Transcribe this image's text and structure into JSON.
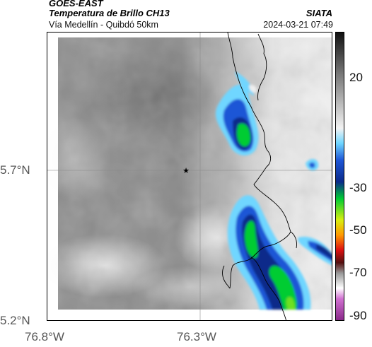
{
  "header": {
    "satellite": "GOES-EAST",
    "product": "Temperatura de Brillo CH13",
    "agency": "SIATA",
    "region": "Vía Medellín - Quibdó 50km",
    "datetime": "2024-03-21 07:49"
  },
  "axes": {
    "lat_ticks": [
      "5.7°N",
      "5.2°N"
    ],
    "lon_ticks": [
      "76.8°W",
      "76.3°W"
    ]
  },
  "colorbar": {
    "ticks": [
      "20",
      "-30",
      "-50",
      "-70",
      "-90"
    ],
    "stops": [
      {
        "v": 40,
        "color": "#111111"
      },
      {
        "v": 20,
        "color": "#7a7a7a"
      },
      {
        "v": -5,
        "color": "#f2f2f2"
      },
      {
        "v": -12,
        "color": "#6fd6ff"
      },
      {
        "v": -20,
        "color": "#1e56d6"
      },
      {
        "v": -30,
        "color": "#0a2a8a"
      },
      {
        "v": -38,
        "color": "#00cc33"
      },
      {
        "v": -48,
        "color": "#d8ee10"
      },
      {
        "v": -55,
        "color": "#ff9900"
      },
      {
        "v": -62,
        "color": "#dd1010"
      },
      {
        "v": -68,
        "color": "#551010"
      },
      {
        "v": -73,
        "color": "#999999"
      },
      {
        "v": -80,
        "color": "#ffffff"
      },
      {
        "v": -85,
        "color": "#d070d0"
      },
      {
        "v": -95,
        "color": "#8a2a8a"
      }
    ]
  },
  "marker": {
    "symbol": "★",
    "name": "site-marker"
  }
}
